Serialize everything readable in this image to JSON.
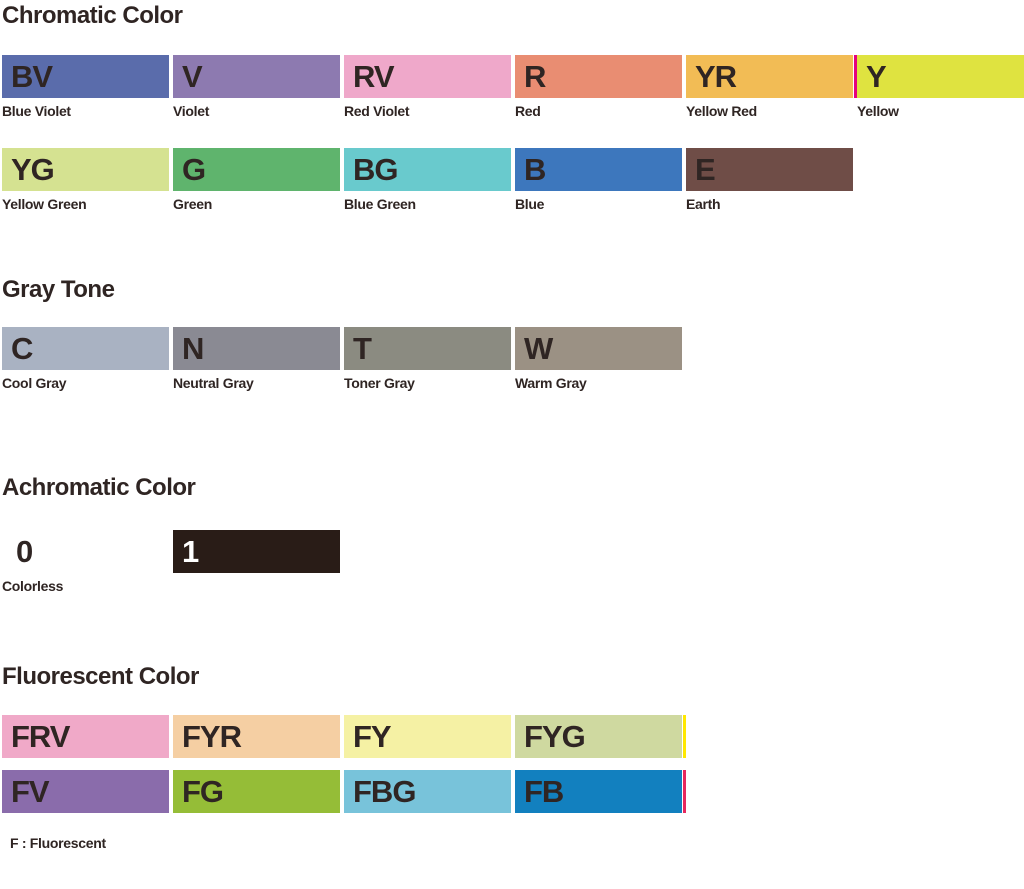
{
  "page": {
    "background": "#ffffff",
    "text_color": "#2f2523"
  },
  "chromatic": {
    "title": "Chromatic Color",
    "row1": [
      {
        "code": "BV",
        "name": "Blue Violet",
        "color": "#5a6cab"
      },
      {
        "code": "V",
        "name": "Violet",
        "color": "#8d7ab0"
      },
      {
        "code": "RV",
        "name": "Red Violet",
        "color": "#efa8ca"
      },
      {
        "code": "R",
        "name": "Red",
        "color": "#e98d72"
      },
      {
        "code": "YR",
        "name": "Yellow Red",
        "color": "#f2bc55",
        "edge": "#e5017e"
      },
      {
        "code": "Y",
        "name": "Yellow",
        "color": "#dfe340"
      }
    ],
    "row2": [
      {
        "code": "YG",
        "name": "Yellow Green",
        "color": "#d5e291"
      },
      {
        "code": "G",
        "name": "Green",
        "color": "#5fb46d"
      },
      {
        "code": "BG",
        "name": "Blue Green",
        "color": "#69cacd"
      },
      {
        "code": "B",
        "name": "Blue",
        "color": "#3d77bd"
      },
      {
        "code": "E",
        "name": "Earth",
        "color": "#6f4d47"
      }
    ]
  },
  "gray": {
    "title": "Gray Tone",
    "row": [
      {
        "code": "C",
        "name": "Cool Gray",
        "color": "#a9b2c2"
      },
      {
        "code": "N",
        "name": "Neutral Gray",
        "color": "#8a8a93"
      },
      {
        "code": "T",
        "name": "Toner Gray",
        "color": "#8b8b81"
      },
      {
        "code": "W",
        "name": "Warm Gray",
        "color": "#9b9184"
      }
    ]
  },
  "achromatic": {
    "title": "Achromatic Color",
    "row": [
      {
        "code": "0",
        "name": "Colorless",
        "color": "#ffffff",
        "text": "#2f2523"
      },
      {
        "code": "1",
        "name": "",
        "color": "#291c17",
        "text": "#ffffff"
      }
    ]
  },
  "fluorescent": {
    "title": "Fluorescent Color",
    "row1": [
      {
        "code": "FRV",
        "color": "#f0a9c8"
      },
      {
        "code": "FYR",
        "color": "#f5cfa3"
      },
      {
        "code": "FY",
        "color": "#f5f1a4"
      },
      {
        "code": "FYG",
        "color": "#cfd9a0",
        "edge": "#ffe800"
      }
    ],
    "row2": [
      {
        "code": "FV",
        "color": "#8a6cab"
      },
      {
        "code": "FG",
        "color": "#95bd37"
      },
      {
        "code": "FBG",
        "color": "#78c3da"
      },
      {
        "code": "FB",
        "color": "#1280bf",
        "edge": "#e7285e"
      }
    ],
    "footnote": "F : Fluorescent"
  }
}
